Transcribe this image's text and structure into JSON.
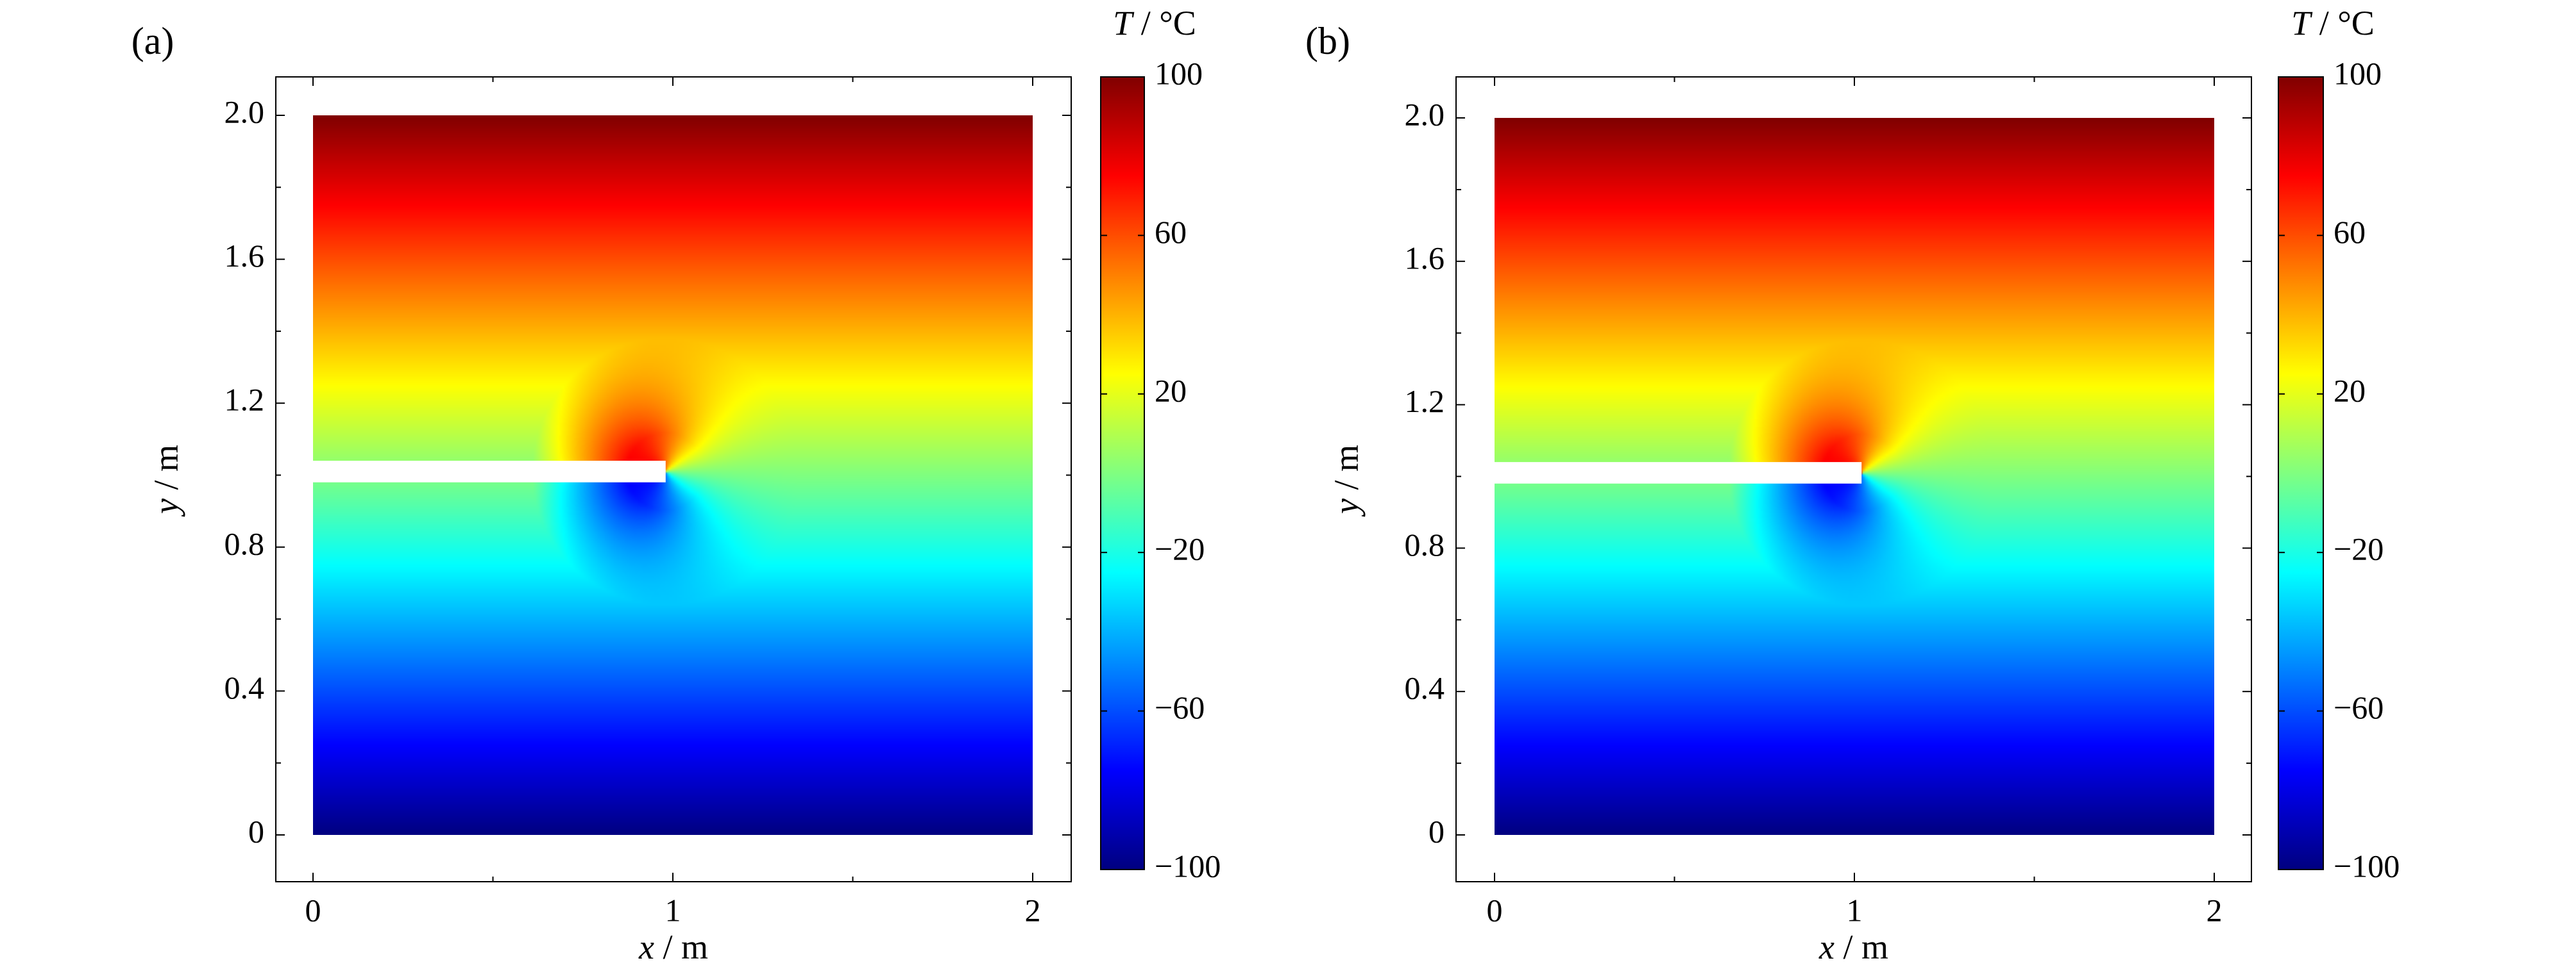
{
  "chart_data": [
    {
      "panel_label": "(a)",
      "type": "heatmap",
      "title": "",
      "xlabel_var": "x",
      "xlabel_unit": "m",
      "ylabel_var": "y",
      "ylabel_unit": "m",
      "xlim": [
        0,
        2
      ],
      "ylim": [
        0,
        2
      ],
      "xticks": [
        0,
        1,
        2
      ],
      "xticklabels": [
        "0",
        "1",
        "2"
      ],
      "yticks": [
        0,
        0.4,
        0.8,
        1.2,
        1.6,
        2.0
      ],
      "yticklabels": [
        "0",
        "0.4",
        "0.8",
        "1.2",
        "1.6",
        "2.0"
      ],
      "colorbar": {
        "label_var": "T",
        "label_unit": "°C",
        "range": [
          -100,
          100
        ],
        "ticks": [
          100,
          60,
          20,
          -20,
          -60,
          -100
        ],
        "ticklabels": [
          "100",
          "60",
          "20",
          "−20",
          "−60",
          "−100"
        ],
        "colormap": "jet"
      },
      "crack": {
        "x_start": 0,
        "x_end": 0.98,
        "y_bottom": 0.98,
        "y_top": 1.04
      },
      "field": {
        "top_boundary_T": 100,
        "bottom_boundary_T": -100,
        "crack_tip": [
          0.98,
          1.01
        ]
      }
    },
    {
      "panel_label": "(b)",
      "type": "heatmap",
      "title": "",
      "xlabel_var": "x",
      "xlabel_unit": "m",
      "ylabel_var": "y",
      "ylabel_unit": "m",
      "xlim": [
        0,
        2
      ],
      "ylim": [
        0,
        2
      ],
      "xticks": [
        0,
        1,
        2
      ],
      "xticklabels": [
        "0",
        "1",
        "2"
      ],
      "yticks": [
        0,
        0.4,
        0.8,
        1.2,
        1.6,
        2.0
      ],
      "yticklabels": [
        "0",
        "0.4",
        "0.8",
        "1.2",
        "1.6",
        "2.0"
      ],
      "colorbar": {
        "label_var": "T",
        "label_unit": "°C",
        "range": [
          -100,
          100
        ],
        "ticks": [
          100,
          60,
          20,
          -20,
          -60,
          -100
        ],
        "ticklabels": [
          "100",
          "60",
          "20",
          "−20",
          "−60",
          "−100"
        ],
        "colormap": "jet"
      },
      "crack": {
        "x_start": 0,
        "x_end": 1.02,
        "y_bottom": 0.98,
        "y_top": 1.04
      },
      "field": {
        "top_boundary_T": 100,
        "bottom_boundary_T": -100,
        "crack_tip": [
          1.02,
          1.01
        ]
      }
    }
  ]
}
